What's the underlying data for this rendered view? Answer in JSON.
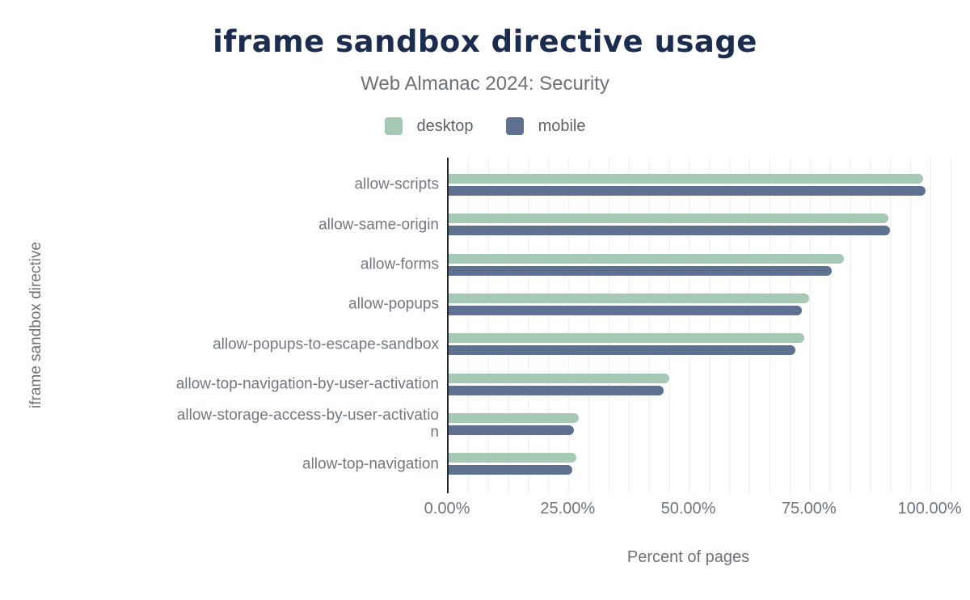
{
  "chart_data": {
    "type": "bar",
    "orientation": "horizontal",
    "title": "iframe sandbox directive usage",
    "subtitle": "Web Almanac 2024: Security",
    "xlabel": "Percent of pages",
    "ylabel": "iframe sandbox directive",
    "xlim": [
      0,
      100
    ],
    "x_tick_labels": [
      "0.00%",
      "25.00%",
      "50.00%",
      "75.00%",
      "100.00%"
    ],
    "grid": "vertical minor gridlines on, light gray",
    "legend_position": "top-center",
    "categories": [
      "allow-scripts",
      "allow-same-origin",
      "allow-forms",
      "allow-popups",
      "allow-popups-to-escape-sandbox",
      "allow-top-navigation-by-user-activation",
      "allow-storage-access-by-user-activation",
      "allow-top-navigation"
    ],
    "category_display": [
      "allow-scripts",
      "allow-same-origin",
      "allow-forms",
      "allow-popups",
      "allow-popups-to-escape-sandbox",
      "allow-top-navigation-by-user-activation",
      "allow-storage-access-by-user-activatio\nn",
      "allow-top-navigation"
    ],
    "series": [
      {
        "name": "desktop",
        "color": "#a6c9b5",
        "values": [
          98.3,
          91.1,
          81.9,
          74.7,
          73.7,
          45.7,
          27.0,
          26.5
        ]
      },
      {
        "name": "mobile",
        "color": "#5e7190",
        "values": [
          98.9,
          91.5,
          79.4,
          73.2,
          71.8,
          44.6,
          26.0,
          25.6
        ]
      }
    ]
  },
  "colors": {
    "title": "#1b2c4e",
    "axis_line": "#23272e",
    "gridline": "#ededef",
    "text_gray": "#73787f"
  }
}
